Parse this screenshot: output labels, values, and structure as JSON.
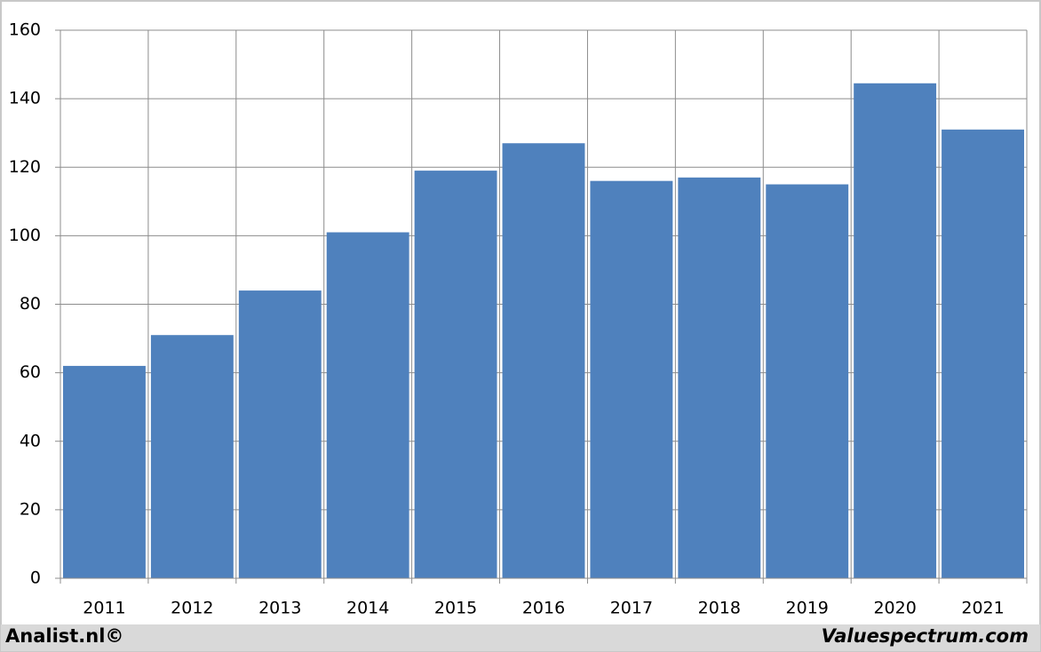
{
  "chart_data": {
    "type": "bar",
    "categories": [
      "2011",
      "2012",
      "2013",
      "2014",
      "2015",
      "2016",
      "2017",
      "2018",
      "2019",
      "2020",
      "2021"
    ],
    "values": [
      62,
      71,
      84,
      101,
      119,
      127,
      116,
      117,
      115,
      144.5,
      131
    ],
    "color": "#4f81bd",
    "ylim": [
      0,
      160
    ],
    "yticks": [
      0,
      20,
      40,
      60,
      80,
      100,
      120,
      140,
      160
    ],
    "grid": true
  },
  "footer": {
    "left": "Analist.nl©",
    "right": "Valuespectrum.com"
  }
}
